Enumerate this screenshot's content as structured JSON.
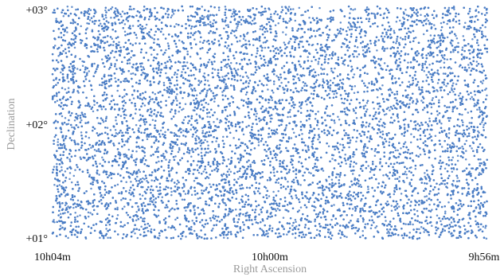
{
  "chart_data": {
    "type": "scatter",
    "title": "",
    "xlabel": "Right Ascension",
    "ylabel": "Declination",
    "x_tick_labels": [
      "10h04m",
      "10h00m",
      "9h56m"
    ],
    "y_tick_labels": [
      "+01°",
      "+02°",
      "+03°"
    ],
    "x_ticks_deg": [
      151.0,
      150.0,
      149.0
    ],
    "y_ticks_deg": [
      1.0,
      2.0,
      3.0
    ],
    "xlim_deg": [
      151.0,
      149.0
    ],
    "ylim_deg": [
      1.0,
      3.0
    ],
    "x_reversed": true,
    "grid": false,
    "point_color": "#4a7cc4",
    "approx_point_count": 14000,
    "distribution": "approximately uniform dense field of points covering the full RA 149°–151°, Dec +1°–+3° region"
  }
}
